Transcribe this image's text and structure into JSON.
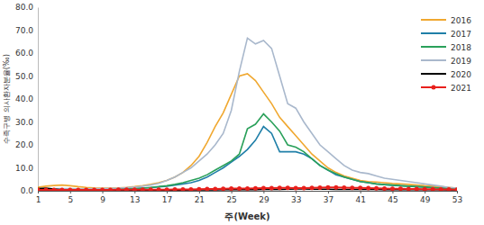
{
  "chart_data": {
    "type": "line",
    "x_label": "주(Week)",
    "y_label": "수족구병 의사환자분율(‰)",
    "x": [
      1,
      2,
      3,
      4,
      5,
      6,
      7,
      8,
      9,
      10,
      11,
      12,
      13,
      14,
      15,
      16,
      17,
      18,
      19,
      20,
      21,
      22,
      23,
      24,
      25,
      26,
      27,
      28,
      29,
      30,
      31,
      32,
      33,
      34,
      35,
      36,
      37,
      38,
      39,
      40,
      41,
      42,
      43,
      44,
      45,
      46,
      47,
      48,
      49,
      50,
      51,
      52,
      53
    ],
    "xlim": [
      1,
      53
    ],
    "xticks": [
      1,
      5,
      9,
      13,
      17,
      21,
      25,
      29,
      33,
      37,
      41,
      45,
      49,
      53
    ],
    "ylim": [
      0,
      80
    ],
    "yticks": [
      {
        "value": 0,
        "label": "0.0"
      },
      {
        "value": 10,
        "label": "10.0"
      },
      {
        "value": 20,
        "label": "20.0"
      },
      {
        "value": 30,
        "label": "30.0"
      },
      {
        "value": 40,
        "label": "40.0"
      },
      {
        "value": 50,
        "label": "50.0"
      },
      {
        "value": 60,
        "label": "60.0"
      },
      {
        "value": 70,
        "label": "70.0"
      },
      {
        "value": 80,
        "label": "80.0"
      }
    ],
    "grid": false,
    "legend": "upper right",
    "series": [
      {
        "name": "2016",
        "color": "#f0a830",
        "values": [
          1.5,
          2.0,
          2.3,
          2.5,
          2.2,
          1.8,
          1.5,
          1.3,
          1.2,
          1.2,
          1.3,
          1.5,
          1.8,
          2.2,
          2.8,
          3.5,
          4.5,
          6.0,
          8.0,
          11.0,
          15.0,
          21.0,
          28.0,
          34.0,
          42.0,
          50.0,
          51.0,
          48.0,
          43.0,
          38.0,
          32.0,
          28.0,
          24.0,
          20.0,
          16.0,
          13.0,
          10.0,
          8.0,
          6.5,
          5.5,
          4.5,
          4.0,
          3.8,
          3.5,
          3.2,
          3.0,
          2.8,
          2.5,
          2.2,
          2.0,
          1.8,
          1.5,
          1.2
        ]
      },
      {
        "name": "2017",
        "color": "#1f7fa8",
        "values": [
          0.6,
          0.6,
          0.6,
          0.6,
          0.6,
          0.6,
          0.6,
          0.6,
          0.7,
          0.7,
          0.8,
          0.9,
          1.0,
          1.2,
          1.4,
          1.7,
          2.0,
          2.5,
          3.0,
          3.5,
          4.5,
          6.0,
          8.0,
          10.0,
          12.5,
          15.0,
          18.0,
          22.0,
          28.0,
          25.0,
          17.0,
          17.0,
          17.0,
          16.0,
          14.0,
          11.0,
          9.0,
          7.0,
          6.0,
          5.0,
          4.0,
          3.5,
          3.0,
          2.7,
          2.4,
          2.2,
          2.0,
          1.8,
          1.6,
          1.4,
          1.2,
          1.0,
          0.9
        ]
      },
      {
        "name": "2018",
        "color": "#2aa05a",
        "values": [
          0.5,
          0.5,
          0.5,
          0.5,
          0.5,
          0.5,
          0.5,
          0.6,
          0.6,
          0.7,
          0.8,
          0.9,
          1.0,
          1.2,
          1.5,
          1.8,
          2.2,
          2.8,
          3.5,
          4.5,
          5.5,
          7.0,
          9.0,
          11.0,
          13.0,
          16.0,
          27.0,
          29.0,
          33.5,
          30.0,
          26.0,
          20.0,
          19.0,
          17.0,
          14.0,
          11.0,
          9.0,
          7.5,
          6.0,
          5.0,
          4.0,
          3.5,
          3.0,
          2.7,
          2.5,
          2.2,
          2.0,
          1.8,
          1.6,
          1.4,
          1.2,
          1.0,
          0.9
        ]
      },
      {
        "name": "2019",
        "color": "#a9b8cc",
        "values": [
          0.8,
          0.9,
          1.0,
          1.0,
          1.0,
          0.9,
          0.9,
          1.0,
          1.0,
          1.1,
          1.2,
          1.4,
          1.6,
          2.0,
          2.5,
          3.2,
          4.5,
          6.0,
          8.0,
          10.0,
          13.0,
          16.0,
          20.0,
          25.0,
          35.0,
          52.0,
          66.5,
          64.0,
          65.5,
          62.0,
          50.0,
          38.0,
          36.0,
          30.0,
          25.0,
          20.0,
          17.0,
          14.0,
          11.0,
          9.0,
          8.0,
          7.5,
          6.5,
          5.5,
          5.0,
          4.5,
          4.0,
          3.5,
          3.0,
          2.5,
          2.0,
          1.5,
          1.2
        ]
      },
      {
        "name": "2020",
        "color": "#000000",
        "values": [
          1.0,
          1.2,
          0.8,
          0.5,
          0.4,
          0.4,
          0.3,
          0.3,
          0.3,
          0.3,
          0.3,
          0.3,
          0.3,
          0.3,
          0.3,
          0.3,
          0.3,
          0.3,
          0.3,
          0.4,
          0.4,
          0.4,
          0.4,
          0.5,
          0.5,
          0.5,
          0.5,
          0.5,
          0.6,
          0.6,
          0.6,
          0.7,
          0.8,
          0.8,
          0.7,
          0.7,
          0.7,
          0.6,
          0.6,
          0.6,
          0.6,
          0.6,
          0.6,
          0.5,
          0.5,
          0.5,
          0.5,
          0.5,
          0.5,
          0.5,
          0.5,
          0.4,
          0.4
        ]
      },
      {
        "name": "2021",
        "color": "#e8201c",
        "marker": "circle",
        "values": [
          0.4,
          0.4,
          0.4,
          0.4,
          0.4,
          0.4,
          0.4,
          0.4,
          0.4,
          0.4,
          0.5,
          0.5,
          0.5,
          0.5,
          0.5,
          0.5,
          0.5,
          0.6,
          0.6,
          0.6,
          0.7,
          0.8,
          0.8,
          0.9,
          1.0,
          1.0,
          1.0,
          1.1,
          1.2,
          1.2,
          1.3,
          1.3,
          1.2,
          1.2,
          1.3,
          1.4,
          1.5,
          1.5,
          1.4,
          1.3,
          1.3,
          1.2,
          1.1,
          1.0,
          0.9,
          0.9,
          0.8,
          0.8,
          0.7,
          0.7,
          0.6,
          0.6,
          0.5
        ]
      }
    ]
  }
}
